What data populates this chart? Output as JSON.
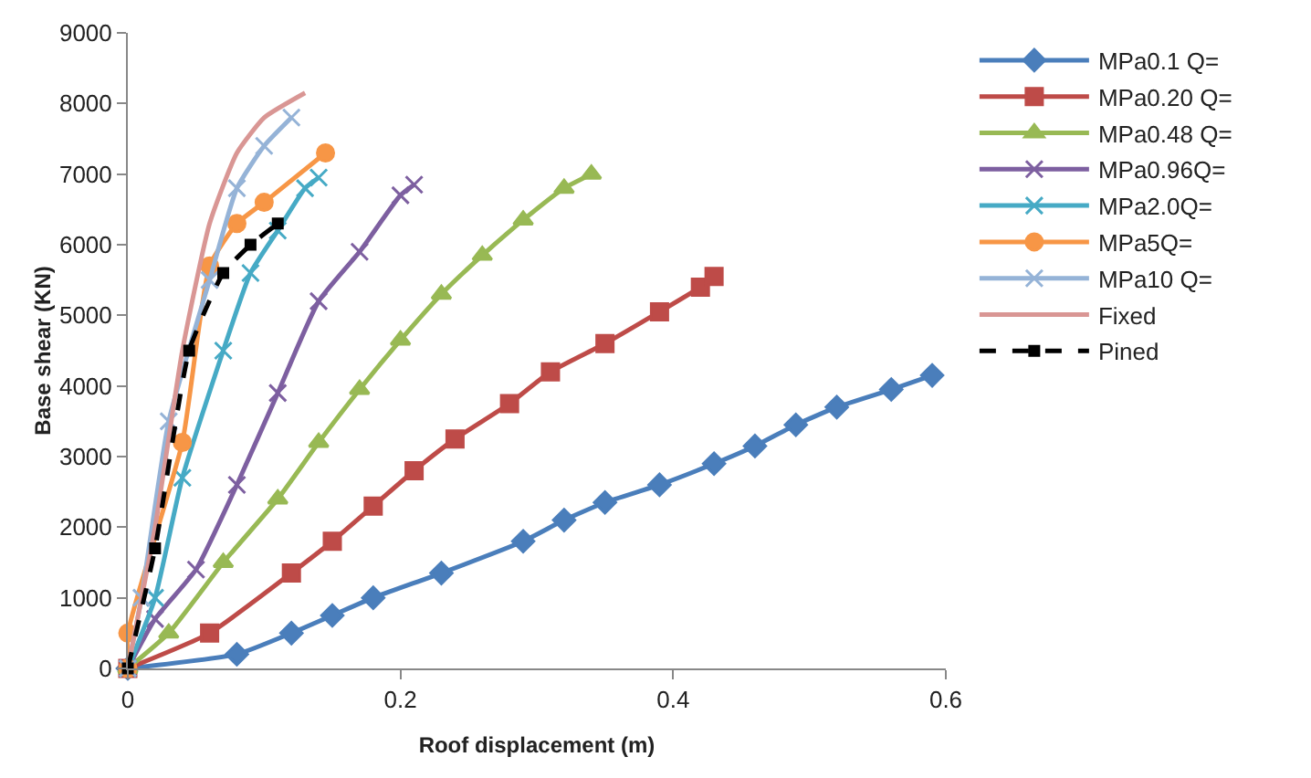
{
  "chart_data": {
    "type": "line",
    "xlabel": "Roof displacement (m)",
    "ylabel": "Base shear (KN)",
    "xlim": [
      0,
      0.6
    ],
    "xticks": [
      0,
      0.2,
      0.4,
      0.6
    ],
    "ylim": [
      0,
      9000
    ],
    "yticks": [
      0,
      1000,
      2000,
      3000,
      4000,
      5000,
      6000,
      7000,
      8000,
      9000
    ],
    "grid": false,
    "legend": "right",
    "line_style": "solid",
    "series": [
      {
        "name": "MPa0.1 Q=",
        "color": "#4a7ebb",
        "marker": "diamond",
        "x": [
          0,
          0.08,
          0.12,
          0.15,
          0.18,
          0.23,
          0.29,
          0.32,
          0.35,
          0.39,
          0.43,
          0.46,
          0.49,
          0.52,
          0.56,
          0.59
        ],
        "values": [
          0,
          200,
          500,
          750,
          1000,
          1350,
          1800,
          2100,
          2350,
          2600,
          2900,
          3150,
          3450,
          3700,
          3950,
          4150
        ]
      },
      {
        "name": "MPa0.20 Q=",
        "color": "#be4b48",
        "marker": "square",
        "x": [
          0,
          0.06,
          0.12,
          0.15,
          0.18,
          0.21,
          0.24,
          0.28,
          0.31,
          0.35,
          0.39,
          0.42,
          0.43
        ],
        "values": [
          0,
          500,
          1350,
          1800,
          2300,
          2800,
          3250,
          3750,
          4200,
          4600,
          5050,
          5400,
          5550
        ]
      },
      {
        "name": "MPa0.48 Q=",
        "color": "#98b954",
        "marker": "triangle",
        "x": [
          0,
          0.03,
          0.07,
          0.11,
          0.14,
          0.17,
          0.2,
          0.23,
          0.26,
          0.29,
          0.32,
          0.34
        ],
        "values": [
          0,
          500,
          1500,
          2400,
          3200,
          3950,
          4650,
          5300,
          5850,
          6350,
          6800,
          7000
        ]
      },
      {
        "name": "MPa0.96Q=",
        "color": "#7d5fa0",
        "marker": "cross",
        "x": [
          0,
          0.02,
          0.05,
          0.08,
          0.11,
          0.14,
          0.17,
          0.2,
          0.21
        ],
        "values": [
          0,
          700,
          1400,
          2600,
          3900,
          5200,
          5900,
          6700,
          6850
        ]
      },
      {
        "name": "MPa2.0Q=",
        "color": "#46aac5",
        "marker": "cross",
        "x": [
          0,
          0.02,
          0.04,
          0.07,
          0.09,
          0.11,
          0.13,
          0.14
        ],
        "values": [
          0,
          1000,
          2700,
          4500,
          5600,
          6200,
          6800,
          6950
        ]
      },
      {
        "name": "MPa5Q=",
        "color": "#f79646",
        "marker": "circle",
        "x": [
          0,
          0,
          0.04,
          0.06,
          0.08,
          0.1,
          0.145
        ],
        "values": [
          0,
          500,
          3200,
          5700,
          6300,
          6600,
          7300
        ]
      },
      {
        "name": "MPa10 Q=",
        "color": "#95b3d7",
        "marker": "cross",
        "x": [
          0,
          0.01,
          0.03,
          0.06,
          0.08,
          0.1,
          0.12
        ],
        "values": [
          0,
          1000,
          3500,
          5500,
          6800,
          7400,
          7800
        ]
      },
      {
        "name": "Fixed",
        "color": "#d99694",
        "marker": "none",
        "x": [
          0,
          0.02,
          0.04,
          0.06,
          0.08,
          0.1,
          0.13
        ],
        "values": [
          0,
          2000,
          4500,
          6300,
          7300,
          7800,
          8150
        ]
      },
      {
        "name": "Pined",
        "color": "#000000",
        "marker": "square",
        "line_style": "dashed",
        "x": [
          0,
          0.02,
          0.045,
          0.07,
          0.09,
          0.11
        ],
        "values": [
          0,
          1700,
          4500,
          5600,
          6000,
          6300
        ]
      }
    ]
  }
}
